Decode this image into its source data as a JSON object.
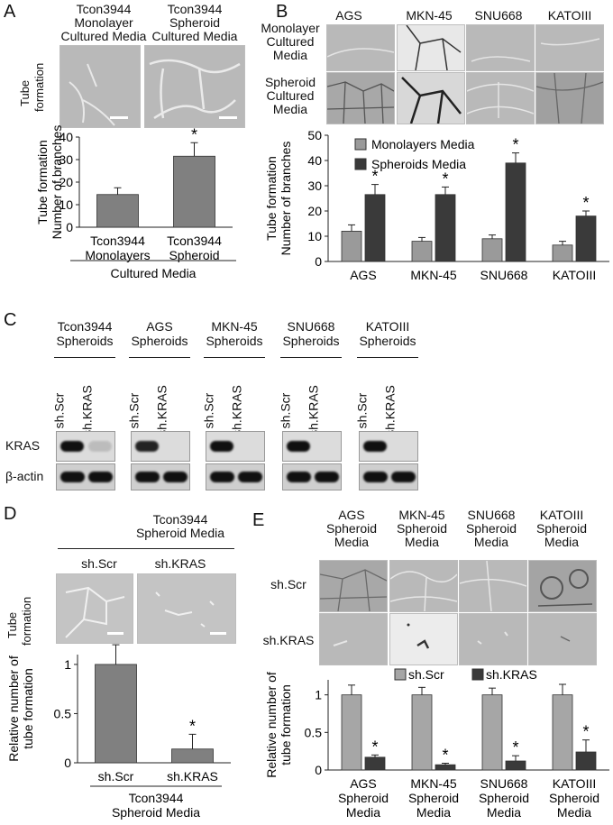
{
  "panels": {
    "A": {
      "letter": "A",
      "col_titles": [
        [
          "Tcon3944",
          "Monolayer",
          "Cultured Media"
        ],
        [
          "Tcon3944",
          "Spheroid",
          "Cultured Media"
        ]
      ],
      "row_label": [
        "Tube",
        "formation"
      ],
      "star": "*"
    },
    "B": {
      "letter": "B",
      "col_titles": [
        "AGS",
        "MKN-45",
        "SNU668",
        "KATOIII"
      ],
      "row_labels": [
        [
          "Monolayer",
          "Cultured",
          "Media"
        ],
        [
          "Spheroid",
          "Cultured",
          "Media"
        ]
      ]
    },
    "C": {
      "letter": "C",
      "groups": [
        [
          "Tcon3944",
          "Spheroids"
        ],
        [
          "AGS",
          "Spheroids"
        ],
        [
          "MKN-45",
          "Spheroids"
        ],
        [
          "SNU668",
          "Spheroids"
        ],
        [
          "KATOIII",
          "Spheroids"
        ]
      ],
      "lanes": [
        "sh.Scr",
        "sh.KRAS"
      ],
      "rows": [
        "KRAS",
        "β-actin"
      ]
    },
    "D": {
      "letter": "D",
      "header": [
        "Tcon3944",
        "Spheroid Media"
      ],
      "cols": [
        "sh.Scr",
        "sh.KRAS"
      ],
      "row_label": [
        "Tube",
        "formation"
      ]
    },
    "E": {
      "letter": "E",
      "col_titles": [
        [
          "AGS",
          "Spheroid",
          "Media"
        ],
        [
          "MKN-45",
          "Spheroid",
          "Media"
        ],
        [
          "SNU668",
          "Spheroid",
          "Media"
        ],
        [
          "KATOIII",
          "Spheroid",
          "Media"
        ]
      ],
      "row_labels": [
        "sh.Scr",
        "sh.KRAS"
      ]
    }
  },
  "chart_data": [
    {
      "id": "A",
      "type": "bar",
      "categories": [
        [
          "Tcon3944",
          "Monolayers"
        ],
        [
          "Tcon3944",
          "Spheroid"
        ]
      ],
      "group_label": "Cultured Media",
      "values": [
        14.5,
        31.5
      ],
      "errors": [
        3,
        6
      ],
      "significance": [
        "",
        "*"
      ],
      "ylabel": [
        "Tube formation",
        "Number of branches"
      ],
      "ylim": [
        0,
        40
      ],
      "yticks": [
        0,
        10,
        20,
        30,
        40
      ],
      "colors": [
        "#808080"
      ]
    },
    {
      "id": "B",
      "type": "bar",
      "categories": [
        "AGS",
        "MKN-45",
        "SNU668",
        "KATOIII"
      ],
      "series": [
        {
          "name": "Monolayers Media",
          "values": [
            12,
            8,
            9,
            6.5
          ],
          "errors": [
            2.5,
            1.5,
            1.5,
            1.5
          ],
          "color": "#9a9a9a"
        },
        {
          "name": "Spheroids Media",
          "values": [
            26.5,
            26.5,
            39,
            18
          ],
          "errors": [
            4,
            3,
            4,
            2
          ],
          "color": "#3a3a3a"
        }
      ],
      "significance": [
        "*",
        "*",
        "*",
        "*"
      ],
      "ylabel": [
        "Tube formation",
        "Number of branches"
      ],
      "ylim": [
        0,
        50
      ],
      "yticks": [
        0,
        10,
        20,
        30,
        40,
        50
      ],
      "legend": "top-left"
    },
    {
      "id": "D",
      "type": "bar",
      "categories": [
        "sh.Scr",
        "sh.KRAS"
      ],
      "group_label": [
        "Tcon3944",
        "Spheroid Media"
      ],
      "values": [
        1.0,
        0.14
      ],
      "errors": [
        0.2,
        0.15
      ],
      "significance": [
        "",
        "*"
      ],
      "ylabel": [
        "Relative number of",
        "tube formation"
      ],
      "ylim": [
        0,
        1.1
      ],
      "yticks": [
        0,
        0.5,
        1
      ],
      "colors": [
        "#808080"
      ]
    },
    {
      "id": "E",
      "type": "bar",
      "categories": [
        [
          "AGS",
          "Spheroid",
          "Media"
        ],
        [
          "MKN-45",
          "Spheroid",
          "Media"
        ],
        [
          "SNU668",
          "Spheroid",
          "Media"
        ],
        [
          "KATOIII",
          "Spheroid",
          "Media"
        ]
      ],
      "series": [
        {
          "name": "sh.Scr",
          "values": [
            1.0,
            1.0,
            1.0,
            1.0
          ],
          "errors": [
            0.13,
            0.1,
            0.09,
            0.14
          ],
          "color": "#a6a6a6"
        },
        {
          "name": "sh.KRAS",
          "values": [
            0.17,
            0.07,
            0.12,
            0.24
          ],
          "errors": [
            0.03,
            0.02,
            0.07,
            0.16
          ],
          "color": "#3a3a3a"
        }
      ],
      "significance": [
        "*",
        "*",
        "*",
        "*"
      ],
      "ylabel": [
        "Relative number of",
        "tube formation"
      ],
      "ylim": [
        0,
        1.2
      ],
      "yticks": [
        0,
        0.5,
        1
      ],
      "legend": "top"
    }
  ]
}
